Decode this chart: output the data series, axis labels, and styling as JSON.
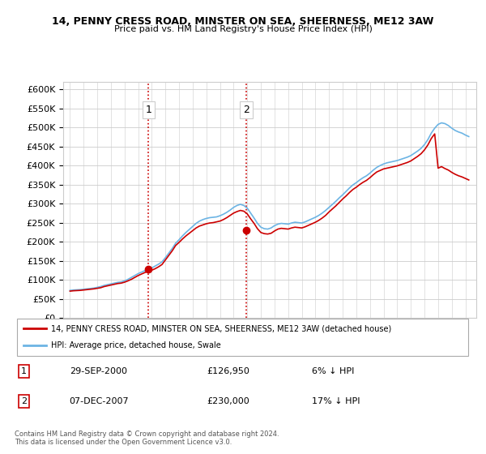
{
  "title": "14, PENNY CRESS ROAD, MINSTER ON SEA, SHEERNESS, ME12 3AW",
  "subtitle": "Price paid vs. HM Land Registry's House Price Index (HPI)",
  "legend_line1": "14, PENNY CRESS ROAD, MINSTER ON SEA, SHEERNESS, ME12 3AW (detached house)",
  "legend_line2": "HPI: Average price, detached house, Swale",
  "annotation1_label": "1",
  "annotation1_date": "29-SEP-2000",
  "annotation1_price": "£126,950",
  "annotation1_hpi": "6% ↓ HPI",
  "annotation2_label": "2",
  "annotation2_date": "07-DEC-2007",
  "annotation2_price": "£230,000",
  "annotation2_hpi": "17% ↓ HPI",
  "footnote": "Contains HM Land Registry data © Crown copyright and database right 2024.\nThis data is licensed under the Open Government Licence v3.0.",
  "hpi_color": "#6cb4e4",
  "price_color": "#cc0000",
  "vline_color": "#cc0000",
  "ylim": [
    0,
    620000
  ],
  "yticks": [
    0,
    50000,
    100000,
    150000,
    200000,
    250000,
    300000,
    350000,
    400000,
    450000,
    500000,
    550000,
    600000
  ],
  "hpi_data": {
    "years": [
      1995.0,
      1995.25,
      1995.5,
      1995.75,
      1996.0,
      1996.25,
      1996.5,
      1996.75,
      1997.0,
      1997.25,
      1997.5,
      1997.75,
      1998.0,
      1998.25,
      1998.5,
      1998.75,
      1999.0,
      1999.25,
      1999.5,
      1999.75,
      2000.0,
      2000.25,
      2000.5,
      2000.75,
      2001.0,
      2001.25,
      2001.5,
      2001.75,
      2002.0,
      2002.25,
      2002.5,
      2002.75,
      2003.0,
      2003.25,
      2003.5,
      2003.75,
      2004.0,
      2004.25,
      2004.5,
      2004.75,
      2005.0,
      2005.25,
      2005.5,
      2005.75,
      2006.0,
      2006.25,
      2006.5,
      2006.75,
      2007.0,
      2007.25,
      2007.5,
      2007.75,
      2008.0,
      2008.25,
      2008.5,
      2008.75,
      2009.0,
      2009.25,
      2009.5,
      2009.75,
      2010.0,
      2010.25,
      2010.5,
      2010.75,
      2011.0,
      2011.25,
      2011.5,
      2011.75,
      2012.0,
      2012.25,
      2012.5,
      2012.75,
      2013.0,
      2013.25,
      2013.5,
      2013.75,
      2014.0,
      2014.25,
      2014.5,
      2014.75,
      2015.0,
      2015.25,
      2015.5,
      2015.75,
      2016.0,
      2016.25,
      2016.5,
      2016.75,
      2017.0,
      2017.25,
      2017.5,
      2017.75,
      2018.0,
      2018.25,
      2018.5,
      2018.75,
      2019.0,
      2019.25,
      2019.5,
      2019.75,
      2020.0,
      2020.25,
      2020.5,
      2020.75,
      2021.0,
      2021.25,
      2021.5,
      2021.75,
      2022.0,
      2022.25,
      2022.5,
      2022.75,
      2023.0,
      2023.25,
      2023.5,
      2023.75,
      2024.0,
      2024.25
    ],
    "values": [
      72000,
      73000,
      73500,
      74000,
      75000,
      76000,
      77000,
      78000,
      80000,
      82000,
      85000,
      87000,
      89000,
      91000,
      93000,
      94000,
      97000,
      101000,
      106000,
      111000,
      116000,
      120000,
      124000,
      127000,
      131000,
      136000,
      141000,
      147000,
      158000,
      170000,
      182000,
      196000,
      205000,
      215000,
      224000,
      232000,
      240000,
      248000,
      254000,
      258000,
      261000,
      263000,
      264000,
      265000,
      268000,
      272000,
      277000,
      283000,
      290000,
      295000,
      298000,
      295000,
      288000,
      275000,
      262000,
      248000,
      238000,
      234000,
      233000,
      236000,
      242000,
      246000,
      248000,
      247000,
      246000,
      249000,
      251000,
      250000,
      249000,
      252000,
      256000,
      260000,
      264000,
      269000,
      275000,
      282000,
      290000,
      298000,
      306000,
      315000,
      323000,
      332000,
      341000,
      349000,
      355000,
      362000,
      368000,
      373000,
      380000,
      388000,
      395000,
      400000,
      404000,
      407000,
      409000,
      411000,
      413000,
      416000,
      419000,
      422000,
      426000,
      432000,
      438000,
      445000,
      455000,
      468000,
      485000,
      498000,
      508000,
      512000,
      510000,
      505000,
      498000,
      492000,
      488000,
      485000,
      480000,
      476000
    ]
  },
  "price_data": {
    "years": [
      1995.0,
      1995.25,
      1995.5,
      1995.75,
      1996.0,
      1996.25,
      1996.5,
      1996.75,
      1997.0,
      1997.25,
      1997.5,
      1997.75,
      1998.0,
      1998.25,
      1998.5,
      1998.75,
      1999.0,
      1999.25,
      1999.5,
      1999.75,
      2000.0,
      2000.25,
      2000.5,
      2000.75,
      2001.0,
      2001.25,
      2001.5,
      2001.75,
      2002.0,
      2002.25,
      2002.5,
      2002.75,
      2003.0,
      2003.25,
      2003.5,
      2003.75,
      2004.0,
      2004.25,
      2004.5,
      2004.75,
      2005.0,
      2005.25,
      2005.5,
      2005.75,
      2006.0,
      2006.25,
      2006.5,
      2006.75,
      2007.0,
      2007.25,
      2007.5,
      2007.75,
      2008.0,
      2008.25,
      2008.5,
      2008.75,
      2009.0,
      2009.25,
      2009.5,
      2009.75,
      2010.0,
      2010.25,
      2010.5,
      2010.75,
      2011.0,
      2011.25,
      2011.5,
      2011.75,
      2012.0,
      2012.25,
      2012.5,
      2012.75,
      2013.0,
      2013.25,
      2013.5,
      2013.75,
      2014.0,
      2014.25,
      2014.5,
      2014.75,
      2015.0,
      2015.25,
      2015.5,
      2015.75,
      2016.0,
      2016.25,
      2016.5,
      2016.75,
      2017.0,
      2017.25,
      2017.5,
      2017.75,
      2018.0,
      2018.25,
      2018.5,
      2018.75,
      2019.0,
      2019.25,
      2019.5,
      2019.75,
      2020.0,
      2020.25,
      2020.5,
      2020.75,
      2021.0,
      2021.25,
      2021.5,
      2021.75,
      2022.0,
      2022.25,
      2022.5,
      2022.75,
      2023.0,
      2023.25,
      2023.5,
      2023.75,
      2024.0,
      2024.25
    ],
    "values": [
      70000,
      71000,
      71500,
      72000,
      73000,
      74000,
      75000,
      76000,
      77500,
      79000,
      82000,
      84000,
      86000,
      88000,
      90000,
      91000,
      93500,
      97000,
      101000,
      106000,
      111000,
      115000,
      119000,
      122000,
      125000,
      129000,
      134000,
      140000,
      152000,
      164000,
      176000,
      190000,
      198000,
      207000,
      215000,
      222000,
      229000,
      236000,
      241000,
      244000,
      247000,
      249000,
      250000,
      252000,
      254000,
      258000,
      263000,
      269000,
      275000,
      279000,
      282000,
      280000,
      273000,
      260000,
      248000,
      234000,
      224000,
      221000,
      220000,
      222000,
      228000,
      233000,
      235000,
      234000,
      233000,
      236000,
      238000,
      237000,
      236000,
      239000,
      243000,
      247000,
      251000,
      256000,
      262000,
      269000,
      278000,
      286000,
      294000,
      303000,
      312000,
      320000,
      329000,
      337000,
      343000,
      350000,
      356000,
      361000,
      368000,
      376000,
      383000,
      387000,
      391000,
      393000,
      395000,
      397000,
      399000,
      402000,
      405000,
      408000,
      412000,
      418000,
      424000,
      431000,
      441000,
      454000,
      471000,
      483000,
      393000,
      397000,
      392000,
      388000,
      382000,
      377000,
      373000,
      370000,
      366000,
      362000
    ]
  },
  "sale1_year": 2000.75,
  "sale1_price": 126950,
  "sale2_year": 2007.92,
  "sale2_price": 230000
}
